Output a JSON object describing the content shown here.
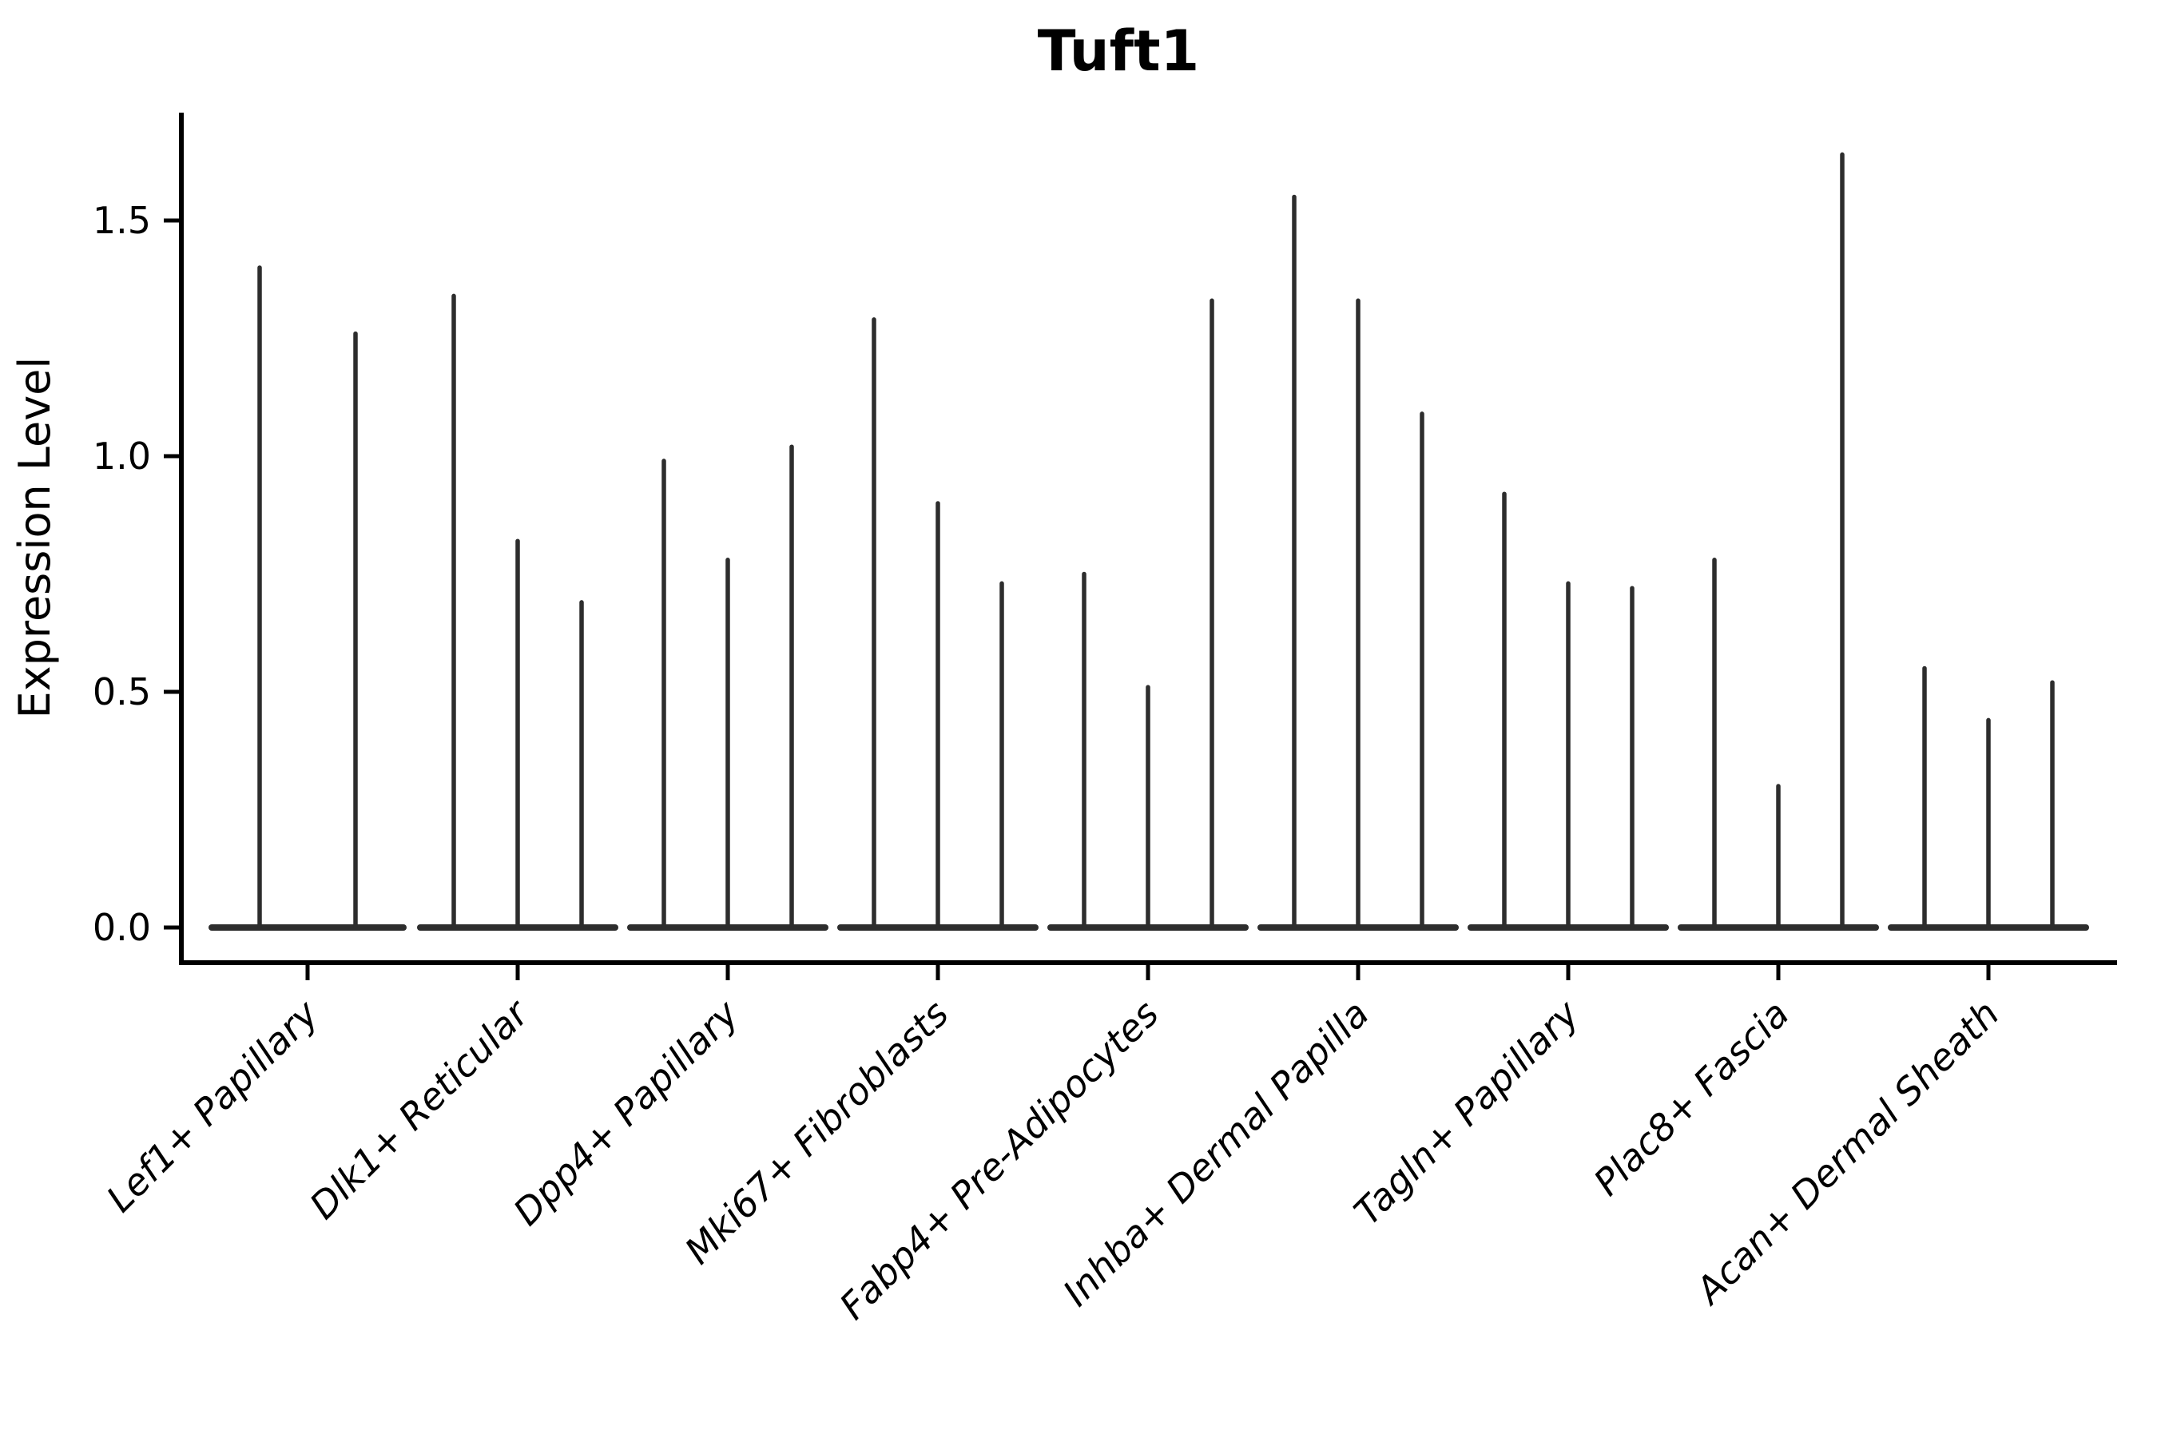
{
  "figure": {
    "background_color": "#ffffff",
    "axis_color": "#000000",
    "violin_color": "#2d2d2d"
  },
  "chart_data": {
    "type": "violin",
    "title": "Tuft1",
    "xlabel": "",
    "ylabel": "Expression Level",
    "grid": false,
    "legend_position": "none",
    "ylim": [
      0,
      1.73
    ],
    "ytick_values": [
      0.0,
      0.5,
      1.0,
      1.5
    ],
    "ytick_labels": [
      "0.0",
      "0.5",
      "1.0",
      "1.5"
    ],
    "categories": [
      "Lef1+ Papillary",
      "Dlk1+ Reticular",
      "Dpp4+ Papillary",
      "Mki67+ Fibroblasts",
      "Fabp4+ Pre-Adipocytes",
      "Inhba+ Dermal Papilla",
      "Tagln+ Papillary",
      "Plac8+ Fascia",
      "Acan+ Dermal Sheath"
    ],
    "series": [
      {
        "name": "Lef1+ Papillary",
        "violin_max_values": [
          1.4,
          1.26
        ]
      },
      {
        "name": "Dlk1+ Reticular",
        "violin_max_values": [
          1.34,
          0.82,
          0.69
        ]
      },
      {
        "name": "Dpp4+ Papillary",
        "violin_max_values": [
          0.99,
          0.78,
          1.02
        ]
      },
      {
        "name": "Mki67+ Fibroblasts",
        "violin_max_values": [
          1.29,
          0.9,
          0.73
        ]
      },
      {
        "name": "Fabp4+ Pre-Adipocytes",
        "violin_max_values": [
          0.75,
          0.51,
          1.33
        ]
      },
      {
        "name": "Inhba+ Dermal Papilla",
        "violin_max_values": [
          1.55,
          1.33,
          1.09
        ]
      },
      {
        "name": "Tagln+ Papillary",
        "violin_max_values": [
          0.92,
          0.73,
          0.72
        ]
      },
      {
        "name": "Plac8+ Fascia",
        "violin_max_values": [
          0.78,
          0.3,
          1.64
        ]
      },
      {
        "name": "Acan+ Dermal Sheath",
        "violin_max_values": [
          0.55,
          0.44,
          0.52
        ]
      }
    ],
    "description": "Each category shows thin violin shapes (all density mass at 0) whose spikes mark the maximum expression level"
  }
}
